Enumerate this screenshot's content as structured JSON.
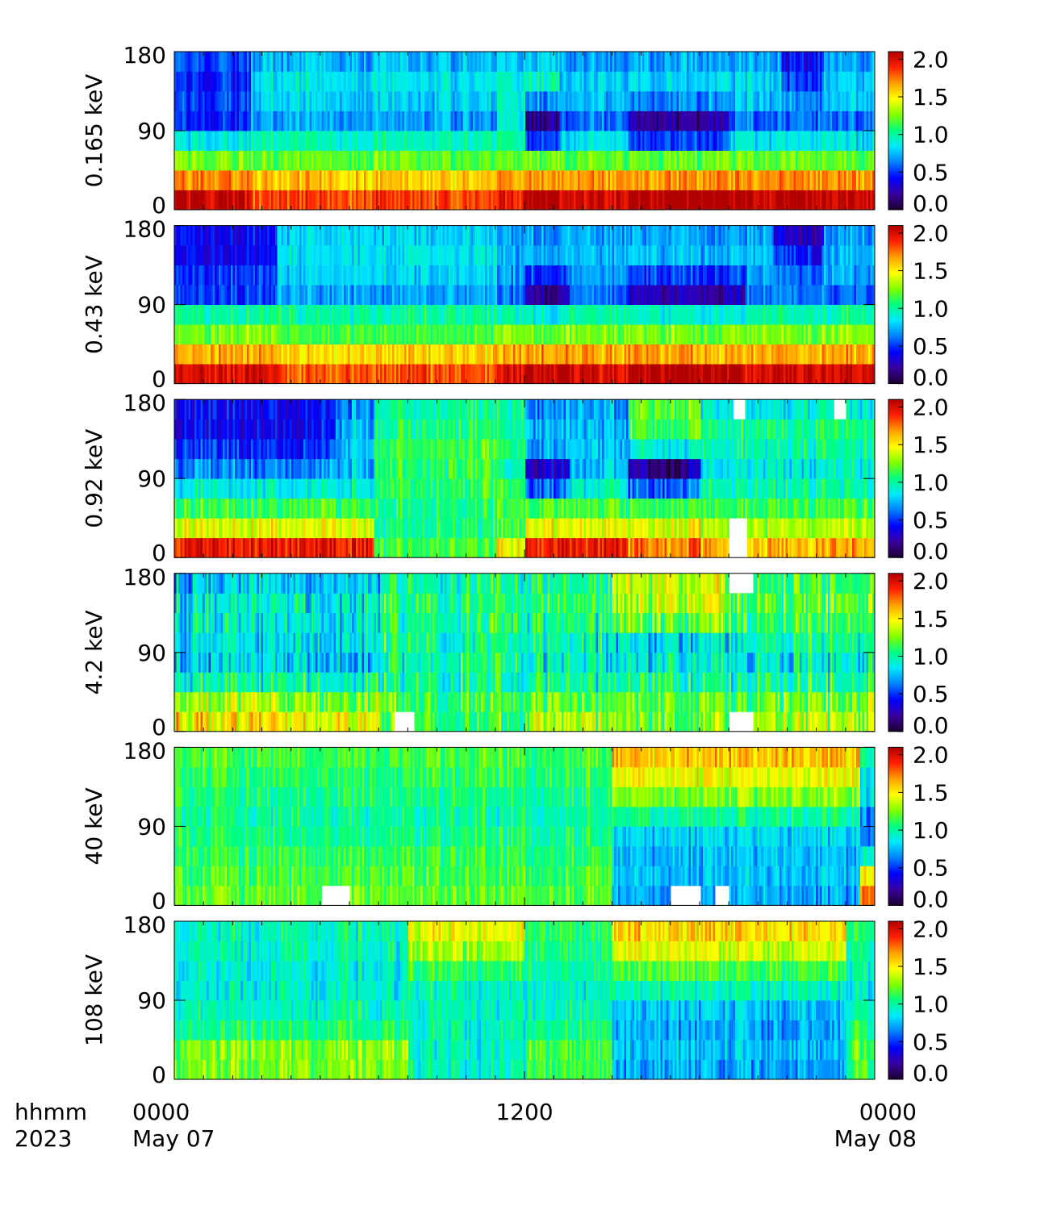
{
  "chart_data": {
    "type": "heatmap",
    "x_axis": {
      "unit_label": "hhmm",
      "year_label": "2023",
      "range_hours": [
        0,
        24
      ],
      "major_ticks": [
        {
          "hour": 0,
          "time": "0000",
          "date": "May 07"
        },
        {
          "hour": 12,
          "time": "1200",
          "date": ""
        },
        {
          "hour": 24,
          "time": "0000",
          "date": "May 08"
        }
      ],
      "minor_tick_interval_hours": 1
    },
    "y_axis": {
      "range": [
        0,
        180
      ],
      "ticks": [
        "180",
        "90",
        "0"
      ]
    },
    "colorbar": {
      "ticks": [
        "2.0",
        "1.5",
        "1.0",
        "0.5",
        "0.0"
      ],
      "tick_values": [
        2.0,
        1.5,
        1.0,
        0.5,
        0.0
      ],
      "range": [
        0.0,
        2.1
      ],
      "colors": [
        "#1a0030",
        "#3a00a0",
        "#0000ff",
        "#0080ff",
        "#00e8ff",
        "#00ff80",
        "#80ff00",
        "#ffff00",
        "#ffa000",
        "#ff2000",
        "#b00000"
      ]
    },
    "panels": [
      {
        "label": "0.165 keV",
        "bin_values": [
          2.05,
          1.7,
          1.2,
          0.85,
          0.6,
          0.75,
          0.8,
          0.7
        ],
        "dynamics": [
          {
            "start": 0.0,
            "end": 2.6,
            "offsets": [
              0,
              0,
              0,
              0,
              -0.15,
              -0.25,
              -0.35,
              -0.2
            ]
          },
          {
            "start": 2.6,
            "end": 11.0,
            "offsets": [
              -0.2,
              -0.1,
              0,
              0.1,
              0.1,
              0.05,
              0.05,
              0.05
            ]
          },
          {
            "start": 11.0,
            "end": 12.0,
            "offsets": [
              -0.1,
              0,
              0,
              0.2,
              0.3,
              0.2,
              0.1,
              0.1
            ]
          },
          {
            "start": 12.0,
            "end": 13.2,
            "offsets": [
              0.1,
              0,
              0,
              -0.35,
              -0.4,
              -0.1,
              0.15,
              0.1
            ]
          },
          {
            "start": 15.5,
            "end": 19.0,
            "offsets": [
              0.1,
              0,
              0,
              -0.35,
              -0.4,
              -0.1,
              0,
              0
            ]
          },
          {
            "start": 20.8,
            "end": 22.2,
            "offsets": [
              0,
              0,
              0,
              0,
              0,
              -0.1,
              -0.3,
              -0.3
            ]
          }
        ],
        "gaps": [],
        "noise": 0.18
      },
      {
        "label": "0.43 keV",
        "bin_values": [
          2.0,
          1.65,
          1.25,
          1.0,
          0.6,
          0.7,
          0.75,
          0.7
        ],
        "dynamics": [
          {
            "start": 0.0,
            "end": 3.5,
            "offsets": [
              0,
              0,
              0,
              0,
              -0.1,
              -0.2,
              -0.35,
              -0.3
            ]
          },
          {
            "start": 3.5,
            "end": 11.0,
            "offsets": [
              -0.2,
              -0.1,
              -0.1,
              0,
              0.1,
              0.1,
              0.1,
              0.1
            ]
          },
          {
            "start": 12.0,
            "end": 13.5,
            "offsets": [
              0.1,
              0.05,
              0,
              -0.1,
              -0.4,
              -0.2,
              0,
              0
            ]
          },
          {
            "start": 15.5,
            "end": 19.5,
            "offsets": [
              0.1,
              0,
              0,
              -0.1,
              -0.35,
              -0.2,
              0,
              0
            ]
          },
          {
            "start": 20.5,
            "end": 22.2,
            "offsets": [
              0,
              0,
              0,
              0,
              0,
              -0.1,
              -0.3,
              -0.4
            ]
          }
        ],
        "gaps": [],
        "noise": 0.18
      },
      {
        "label": "0.92 keV",
        "bin_values": [
          1.95,
          1.45,
          1.15,
          0.9,
          0.75,
          0.8,
          0.75,
          0.7
        ],
        "dynamics": [
          {
            "start": 0.0,
            "end": 5.5,
            "offsets": [
              0,
              0,
              0,
              0,
              -0.1,
              -0.3,
              -0.35,
              -0.3
            ]
          },
          {
            "start": 6.8,
            "end": 11.0,
            "offsets": [
              -0.8,
              -0.4,
              -0.1,
              0.2,
              0.35,
              0.35,
              0.3,
              0.3
            ]
          },
          {
            "start": 11.0,
            "end": 12.0,
            "offsets": [
              -0.5,
              -0.3,
              0,
              0.2,
              0.2,
              0.3,
              0.3,
              0.3
            ]
          },
          {
            "start": 12.0,
            "end": 13.5,
            "offsets": [
              0,
              0,
              0,
              -0.3,
              -0.45,
              -0.1,
              0,
              0
            ]
          },
          {
            "start": 15.5,
            "end": 18.0,
            "offsets": [
              -0.2,
              0,
              0,
              -0.3,
              -0.55,
              0.1,
              0.4,
              0.5
            ]
          },
          {
            "start": 18.0,
            "end": 24.0,
            "offsets": [
              -0.3,
              -0.1,
              0,
              0.1,
              0.15,
              0.2,
              0.3,
              0.2
            ]
          }
        ],
        "gaps": [
          [
            19.0,
            19.6,
            0,
            2
          ],
          [
            19.1,
            19.5,
            7,
            8
          ],
          [
            22.6,
            23.0,
            7,
            8
          ]
        ],
        "noise": 0.22
      },
      {
        "label": "4.2 keV",
        "bin_values": [
          1.3,
          1.2,
          1.0,
          0.9,
          0.95,
          1.0,
          1.05,
          1.0
        ],
        "dynamics": [
          {
            "start": 0.0,
            "end": 7.0,
            "offsets": [
              0.2,
              0.1,
              0,
              -0.1,
              -0.1,
              -0.1,
              -0.15,
              -0.2
            ]
          },
          {
            "start": 7.0,
            "end": 12.0,
            "offsets": [
              -0.2,
              -0.1,
              0,
              0.1,
              0.05,
              0.05,
              0,
              0
            ]
          },
          {
            "start": 15.0,
            "end": 19.0,
            "offsets": [
              -0.1,
              0,
              0,
              0,
              -0.1,
              0.2,
              0.3,
              0.35
            ]
          },
          {
            "start": 19.0,
            "end": 24.0,
            "offsets": [
              0,
              0,
              0,
              0,
              0.05,
              0.1,
              0.1,
              0.1
            ]
          }
        ],
        "gaps": [
          [
            7.5,
            8.2,
            0,
            1
          ],
          [
            19.0,
            19.8,
            0,
            1
          ],
          [
            19.0,
            19.8,
            7,
            8
          ]
        ],
        "noise": 0.32
      },
      {
        "label": "40 keV",
        "bin_values": [
          1.2,
          1.15,
          1.1,
          1.05,
          1.0,
          1.05,
          1.1,
          1.15
        ],
        "dynamics": [
          {
            "start": 15.0,
            "end": 23.5,
            "offsets": [
              -0.5,
              -0.4,
              -0.35,
              -0.25,
              0,
              0.2,
              0.35,
              0.45
            ]
          },
          {
            "start": 23.5,
            "end": 24.0,
            "offsets": [
              0.55,
              0.3,
              -0.2,
              -0.45,
              -0.4,
              -0.3,
              -0.25,
              -0.2
            ]
          }
        ],
        "gaps": [
          [
            5.0,
            6.0,
            0,
            1
          ],
          [
            17.0,
            18.0,
            0,
            1
          ],
          [
            18.5,
            19.0,
            0,
            1
          ]
        ],
        "noise": 0.2
      },
      {
        "label": "108 keV",
        "bin_values": [
          1.15,
          1.15,
          1.05,
          0.95,
          0.95,
          1.0,
          1.05,
          1.1
        ],
        "dynamics": [
          {
            "start": 0.0,
            "end": 8.0,
            "offsets": [
              0.1,
              0.1,
              0,
              0,
              -0.05,
              -0.1,
              -0.1,
              -0.15
            ]
          },
          {
            "start": 8.0,
            "end": 12.0,
            "offsets": [
              -0.2,
              -0.2,
              -0.1,
              0,
              0,
              0.1,
              0.25,
              0.35
            ]
          },
          {
            "start": 15.0,
            "end": 23.0,
            "offsets": [
              -0.45,
              -0.4,
              -0.35,
              -0.2,
              0,
              0.15,
              0.35,
              0.45
            ]
          }
        ],
        "gaps": [],
        "noise": 0.22
      }
    ]
  }
}
